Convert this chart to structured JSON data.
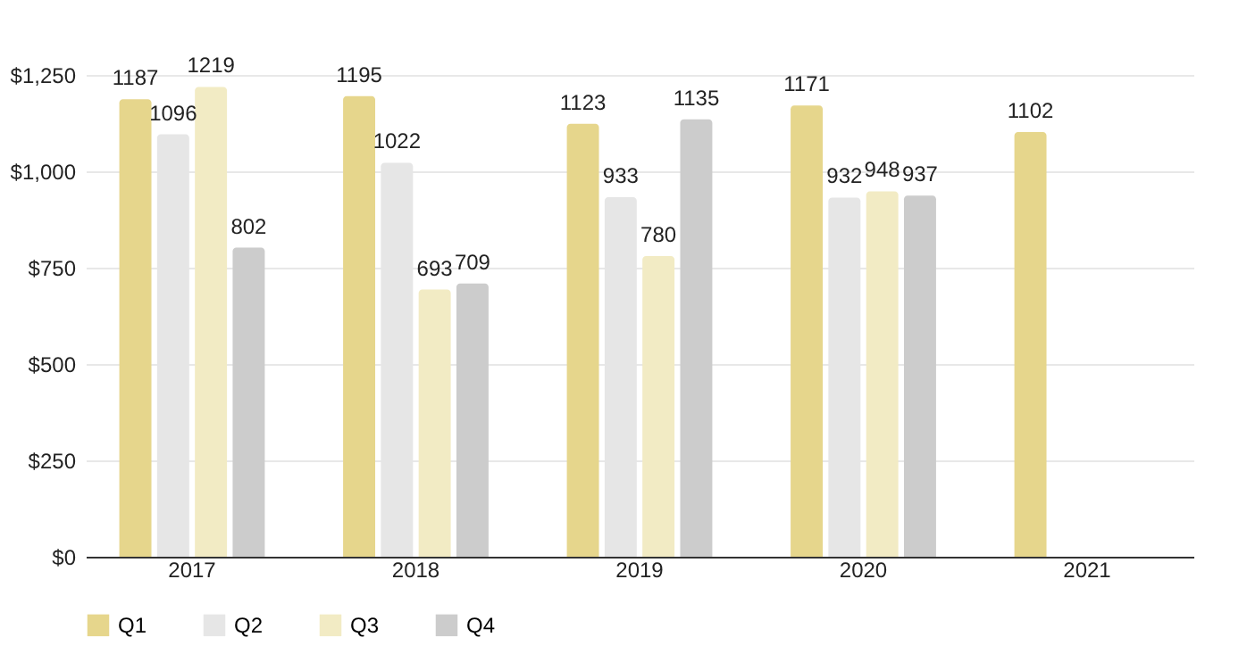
{
  "chart_data": {
    "type": "bar",
    "categories": [
      "2017",
      "2018",
      "2019",
      "2020",
      "2021"
    ],
    "series": [
      {
        "name": "Q1",
        "color": "#e6d68c",
        "values": [
          1187,
          1195,
          1123,
          1171,
          1102
        ]
      },
      {
        "name": "Q2",
        "color": "#e6e6e6",
        "values": [
          1096,
          1022,
          933,
          932,
          null
        ]
      },
      {
        "name": "Q3",
        "color": "#f2ebc4",
        "values": [
          1219,
          693,
          780,
          948,
          null
        ]
      },
      {
        "name": "Q4",
        "color": "#cccccc",
        "values": [
          802,
          709,
          1135,
          937,
          null
        ]
      }
    ],
    "ylim": [
      0,
      1250
    ],
    "yticks": [
      {
        "value": 0,
        "label": "$0"
      },
      {
        "value": 250,
        "label": "$250"
      },
      {
        "value": 500,
        "label": "$500"
      },
      {
        "value": 750,
        "label": "$750"
      },
      {
        "value": 1000,
        "label": "$1,000"
      },
      {
        "value": 1250,
        "label": "$1,250"
      }
    ],
    "grid": "y",
    "legend": "bottom",
    "data_labels": true
  }
}
